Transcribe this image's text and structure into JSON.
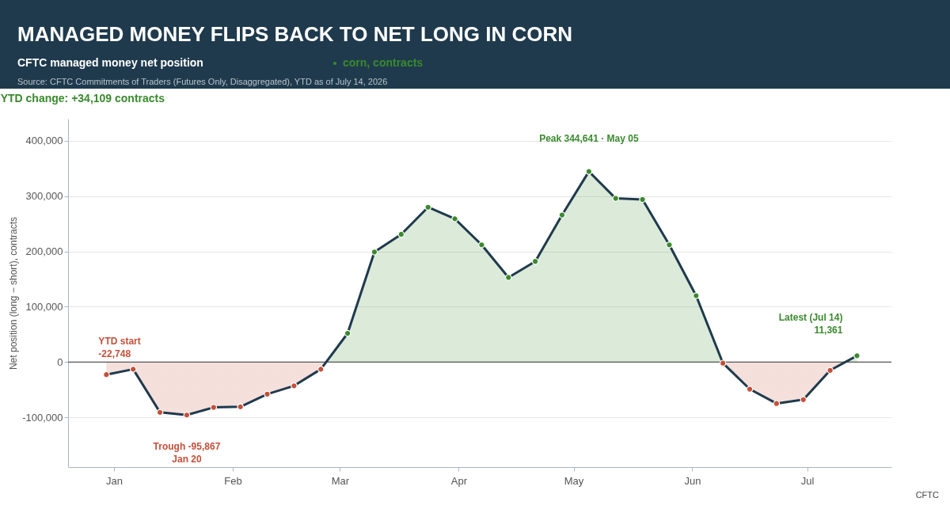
{
  "chart_data": {
    "type": "area",
    "title": "MANAGED MONEY FLIPS BACK TO NET LONG IN CORN",
    "subtitle": "CFTC managed money net position",
    "ylabel": "Net position (long − short), contracts",
    "x": [
      "2025-12-30",
      "2026-01-06",
      "2026-01-13",
      "2026-01-20",
      "2026-01-27",
      "2026-02-03",
      "2026-02-10",
      "2026-02-17",
      "2026-02-24",
      "2026-03-03",
      "2026-03-10",
      "2026-03-17",
      "2026-03-24",
      "2026-03-31",
      "2026-04-07",
      "2026-04-14",
      "2026-04-21",
      "2026-04-28",
      "2026-05-05",
      "2026-05-12",
      "2026-05-19",
      "2026-05-26",
      "2026-06-02",
      "2026-06-09",
      "2026-06-16",
      "2026-06-23",
      "2026-06-30",
      "2026-07-07",
      "2026-07-14"
    ],
    "series": [
      {
        "name": "corn, contracts",
        "color": "#1f3a4d",
        "values": [
          -22748,
          -13000,
          -91000,
          -95867,
          -82000,
          -81000,
          -58000,
          -43000,
          -13000,
          52000,
          199000,
          231000,
          280000,
          259000,
          212000,
          153000,
          182000,
          266000,
          344641,
          296000,
          294000,
          212000,
          120000,
          -2000,
          -49000,
          -75000,
          -68000,
          -15000,
          11361
        ],
        "colors": [
          "#c4503a",
          "#c4503a",
          "#c4503a",
          "#c4503a",
          "#c4503a",
          "#c4503a",
          "#c4503a",
          "#c4503a",
          "#c4503a",
          "#3a8a2e",
          "#3a8a2e",
          "#3a8a2e",
          "#3a8a2e",
          "#3a8a2e",
          "#3a8a2e",
          "#3a8a2e",
          "#3a8a2e",
          "#3a8a2e",
          "#3a8a2e",
          "#3a8a2e",
          "#3a8a2e",
          "#3a8a2e",
          "#3a8a2e",
          "#c4503a",
          "#c4503a",
          "#c4503a",
          "#c4503a",
          "#c4503a",
          "#3a8a2e"
        ]
      }
    ],
    "xlim": [
      "2025-12-20",
      "2026-07-23"
    ],
    "xticks": [
      {
        "value": "2026-01-01",
        "label": "Jan"
      },
      {
        "value": "2026-02-01",
        "label": "Feb"
      },
      {
        "value": "2026-03-01",
        "label": "Mar"
      },
      {
        "value": "2026-04-01",
        "label": "Apr"
      },
      {
        "value": "2026-05-01",
        "label": "May"
      },
      {
        "value": "2026-06-01",
        "label": "Jun"
      },
      {
        "value": "2026-07-01",
        "label": "Jul"
      }
    ],
    "ylim": [
      -190000,
      440000
    ],
    "yticks": [
      {
        "value": -100000,
        "label": "-100,000"
      },
      0,
      {
        "value": 100000,
        "label": "100,000"
      },
      {
        "value": 200000,
        "label": "200,000"
      },
      {
        "value": 300000,
        "label": "300,000"
      },
      {
        "value": 400000,
        "label": "400,000"
      }
    ],
    "ref_lines": [
      {
        "axis": "y",
        "value": 0,
        "color": "#555555"
      }
    ],
    "grid": "y",
    "legend": "top",
    "marker": "circle",
    "line_style": "solid",
    "annotations": [
      "YTD change:  +34,109 contracts",
      {
        "text": "YTD start\n-22,748",
        "x": "2025-12-30",
        "y": -22748
      },
      {
        "text": "Trough -95,867\nJan 20",
        "x": "2026-01-20",
        "y": -95867
      },
      {
        "text": "Peak  344,641  ·  May 05",
        "x": "2026-05-05",
        "y": 344641
      },
      {
        "text": "Latest (Jul 14)\n11,361",
        "x": "2026-07-14",
        "y": 11361
      },
      "Source: CFTC Commitments of Traders (Futures Only, Disaggregated), YTD as of July 14, 2026",
      "CFTC"
    ]
  }
}
